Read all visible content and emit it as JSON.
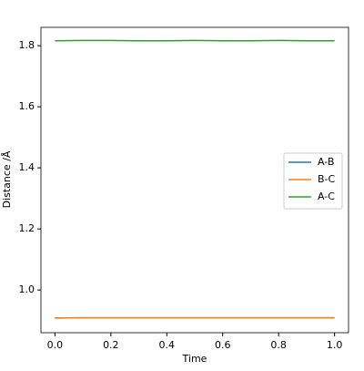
{
  "chart_data": {
    "type": "line",
    "x_label": "Time",
    "y_label": "Distance /Å",
    "x": [
      0,
      0.1,
      0.2,
      0.3,
      0.4,
      0.5,
      0.6,
      0.7,
      0.8,
      0.9,
      1.0
    ],
    "series": [
      {
        "name": "A-B",
        "color": "#1f77b4",
        "values": [
          0.908,
          0.909,
          0.909,
          0.909,
          0.909,
          0.909,
          0.909,
          0.909,
          0.909,
          0.909,
          0.909
        ]
      },
      {
        "name": "B-C",
        "color": "#ff7f0e",
        "values": [
          0.908,
          0.909,
          0.909,
          0.909,
          0.909,
          0.909,
          0.909,
          0.909,
          0.909,
          0.909,
          0.909
        ]
      },
      {
        "name": "A-C",
        "color": "#2ca02c",
        "values": [
          1.816,
          1.817,
          1.817,
          1.816,
          1.816,
          1.817,
          1.816,
          1.816,
          1.817,
          1.816,
          1.816
        ]
      }
    ],
    "xlim": [
      -0.05,
      1.05
    ],
    "xticks": [
      {
        "value": 0,
        "label": "0.0"
      },
      0.2,
      0.4,
      0.6,
      0.8,
      {
        "value": 1,
        "label": "1.0"
      }
    ],
    "ylim": [
      0.86,
      1.86
    ],
    "yticks": [
      {
        "value": 1,
        "label": "1.0"
      },
      1.2,
      1.4,
      1.6,
      1.8
    ],
    "legend": "right"
  }
}
